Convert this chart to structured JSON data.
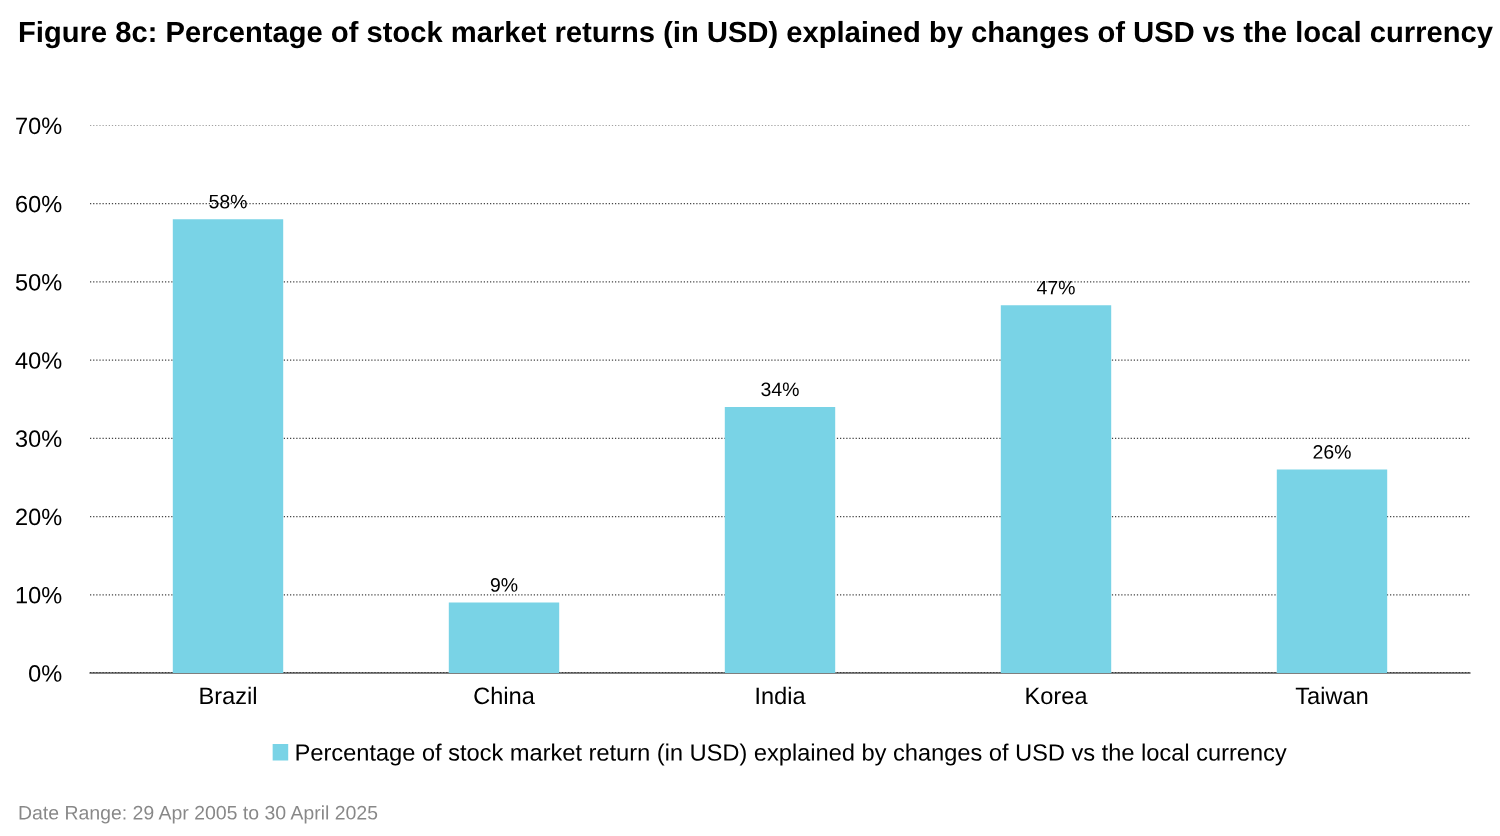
{
  "chart_data": {
    "type": "bar",
    "title": "Figure 8c: Percentage of stock market returns (in USD) explained by changes of USD vs the local currency",
    "categories": [
      "Brazil",
      "China",
      "India",
      "Korea",
      "Taiwan"
    ],
    "series": [
      {
        "name": "Percentage of stock market return (in USD) explained by changes of USD vs the local currency",
        "color": "#79d3e6",
        "values": [
          58,
          9,
          34,
          47,
          26
        ],
        "value_labels": [
          "58%",
          "9%",
          "34%",
          "47%",
          "26%"
        ]
      }
    ],
    "ylim": [
      0,
      70
    ],
    "yticks": [
      {
        "value": 0,
        "label": "0%"
      },
      {
        "value": 10,
        "label": "10%"
      },
      {
        "value": 20,
        "label": "20%"
      },
      {
        "value": 30,
        "label": "30%"
      },
      {
        "value": 40,
        "label": "40%"
      },
      {
        "value": 50,
        "label": "50%"
      },
      {
        "value": 60,
        "label": "60%"
      },
      {
        "value": 70,
        "label": "70%"
      }
    ],
    "grid": "y",
    "legend": "bottom",
    "annotations": [
      "Date Range: 29 Apr 2005 to 30 April 2025"
    ]
  }
}
